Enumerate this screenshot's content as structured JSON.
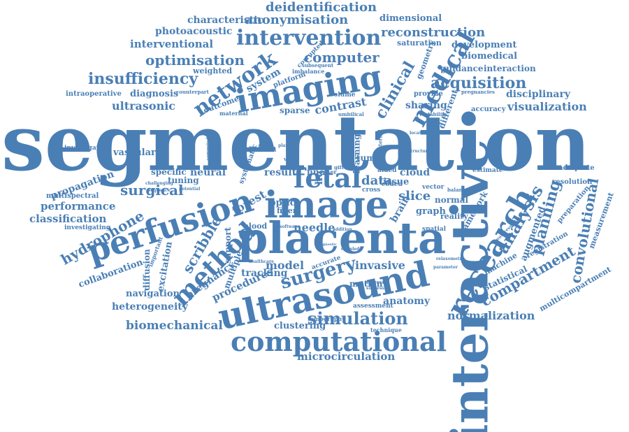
{
  "colors": {
    "word": "#4a7fb5",
    "background": "#ffffff"
  },
  "words": [
    "segmentation",
    "interactive",
    "placenta",
    "ultrasound",
    "image",
    "perfusion",
    "imaging",
    "computational",
    "research",
    "method",
    "fetal",
    "medical",
    "network",
    "surgery",
    "intervention",
    "acquisition",
    "analysis",
    "simulation",
    "planning",
    "clinical",
    "insufficiency",
    "optimisation",
    "reconstruction",
    "anonymisation",
    "deidentification",
    "computer",
    "surgical",
    "scribble",
    "convolutional",
    "compartment",
    "biomechanical",
    "microcirculation",
    "normalization",
    "visualization",
    "classification",
    "performance",
    "hydrophone",
    "heterogeneity",
    "ultrasonic",
    "interventional",
    "photoacoustic",
    "characteristic",
    "dimensional",
    "development",
    "biomedical",
    "guidance",
    "interaction",
    "disciplinary",
    "diagnosis",
    "intraoperative",
    "weighted",
    "system",
    "contrast",
    "sharing",
    "accuracy",
    "outcome",
    "sparse",
    "tumor",
    "human",
    "learning",
    "micro",
    "tissue",
    "data",
    "slice",
    "cloud",
    "brain",
    "forest",
    "neural",
    "specific",
    "tuning",
    "vascular",
    "propagation",
    "multispectral",
    "investigating",
    "investigated",
    "collaboration",
    "diffusion",
    "excitation",
    "pregnancy",
    "procedures",
    "navigation",
    "tracking",
    "model",
    "invasive",
    "motion",
    "anatomy",
    "clustering",
    "tomography",
    "technique",
    "assessment",
    "optic",
    "fiber",
    "needle",
    "blood",
    "support",
    "multiple",
    "result",
    "fine",
    "graph",
    "reality",
    "framework",
    "normal",
    "statistical",
    "machine",
    "augmented",
    "registration",
    "measurement",
    "multicompartment",
    "resolution",
    "preparation",
    "inadequate",
    "estimate",
    "saturation",
    "geometry",
    "corrupted",
    "platform",
    "imbalance",
    "subsequent",
    "volume",
    "provide",
    "pregnancies",
    "counterpart",
    "maternal",
    "umbilical",
    "different",
    "variability",
    "systematic",
    "aided",
    "coded",
    "cross",
    "vector",
    "balanced",
    "accurate",
    "spatial",
    "healthcare",
    "software",
    "addition",
    "prognostic",
    "coupled",
    "assessed",
    "successful",
    "multiresolution",
    "relaxometry",
    "parameter",
    "challenging",
    "sequence",
    "potential",
    "important",
    "computed",
    "insertion",
    "view",
    "planar",
    "user",
    "gift",
    "external",
    "location",
    "structure"
  ]
}
